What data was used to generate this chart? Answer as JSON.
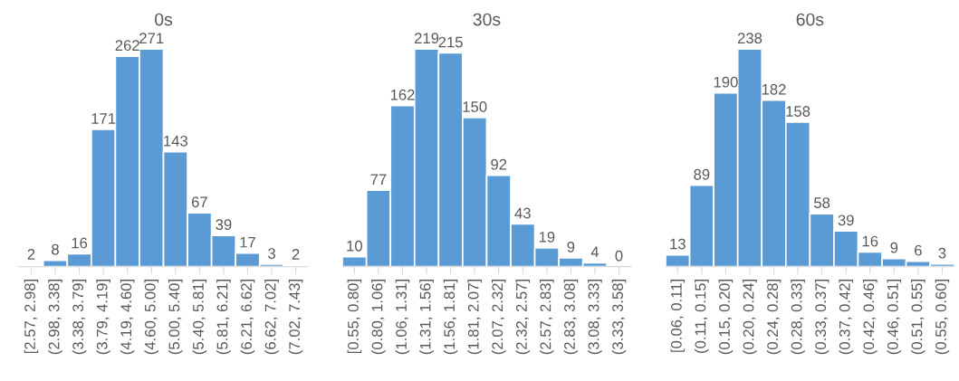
{
  "chart_data": [
    {
      "type": "bar",
      "title": "0s",
      "color": "#5b9bd5",
      "data_labels": true,
      "categories": [
        "[2.57, 2.98]",
        "(2.98, 3.38]",
        "(3.38, 3.79]",
        "(3.79, 4.19]",
        "(4.19, 4.60]",
        "(4.60, 5.00]",
        "(5.00, 5.40]",
        "(5.40, 5.81]",
        "(5.81, 6.21]",
        "(6.21, 6.62]",
        "(6.62, 7.02]",
        "(7.02, 7.43]"
      ],
      "values": [
        2,
        8,
        16,
        171,
        262,
        271,
        143,
        67,
        39,
        17,
        3,
        2
      ]
    },
    {
      "type": "bar",
      "title": "30s",
      "color": "#5b9bd5",
      "data_labels": true,
      "categories": [
        "[0.55, 0.80]",
        "(0.80, 1.06]",
        "(1.06, 1.31]",
        "(1.31, 1.56]",
        "(1.56, 1.81]",
        "(1.81, 2.07]",
        "(2.07, 2.32]",
        "(2.32, 2.57]",
        "(2.57, 2.83]",
        "(2.83, 3.08]",
        "(3.08, 3.33]",
        "(3.33, 3.58]"
      ],
      "values": [
        10,
        77,
        162,
        219,
        215,
        150,
        92,
        43,
        19,
        9,
        4,
        0
      ]
    },
    {
      "type": "bar",
      "title": "60s",
      "color": "#5b9bd5",
      "data_labels": true,
      "categories": [
        "[0.06, 0.11]",
        "(0.11, 0.15]",
        "(0.15, 0.20]",
        "(0.20, 0.24]",
        "(0.24, 0.28]",
        "(0.28, 0.33]",
        "(0.33, 0.37]",
        "(0.37, 0.42]",
        "(0.42, 0.46]",
        "(0.46, 0.51]",
        "(0.51, 0.55]",
        "(0.55, 0.60]"
      ],
      "values": [
        13,
        89,
        190,
        238,
        182,
        158,
        58,
        39,
        16,
        9,
        6,
        3
      ]
    }
  ]
}
